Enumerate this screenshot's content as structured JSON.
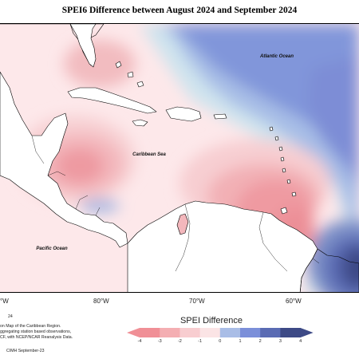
{
  "title": "SPEI6 Difference between August 2024 and September 2024",
  "map": {
    "labels": {
      "atlantic": "Atlantic Ocean",
      "caribbean": "Caribbean Sea",
      "pacific": "Pacific Ocean"
    }
  },
  "longitudes": [
    "°W",
    "80°W",
    "70°W",
    "60°W"
  ],
  "notes": {
    "year_fragment": "24",
    "line1": "on Map of the Caribbean Region.",
    "line2": "ggregating station based observations,",
    "line3": "CF, with NCEP/NCAR Reanalysis Data.",
    "credit": "CIMH September-23"
  },
  "legend": {
    "title": "SPEI Difference",
    "ticks": [
      "-4",
      "-3",
      "-2",
      "-1",
      "0",
      "1",
      "2",
      "3",
      "4"
    ],
    "colors": [
      "#f08f96",
      "#f4aeb2",
      "#f8cdd0",
      "#fbe4e5",
      "#d3e6ee",
      "#a9bde6",
      "#7b8fd9",
      "#5a6bb3",
      "#3d4a86"
    ]
  },
  "colors": {
    "ocean_neutral": "#fde8ea",
    "land": "#ffffff",
    "coast": "#000000"
  }
}
